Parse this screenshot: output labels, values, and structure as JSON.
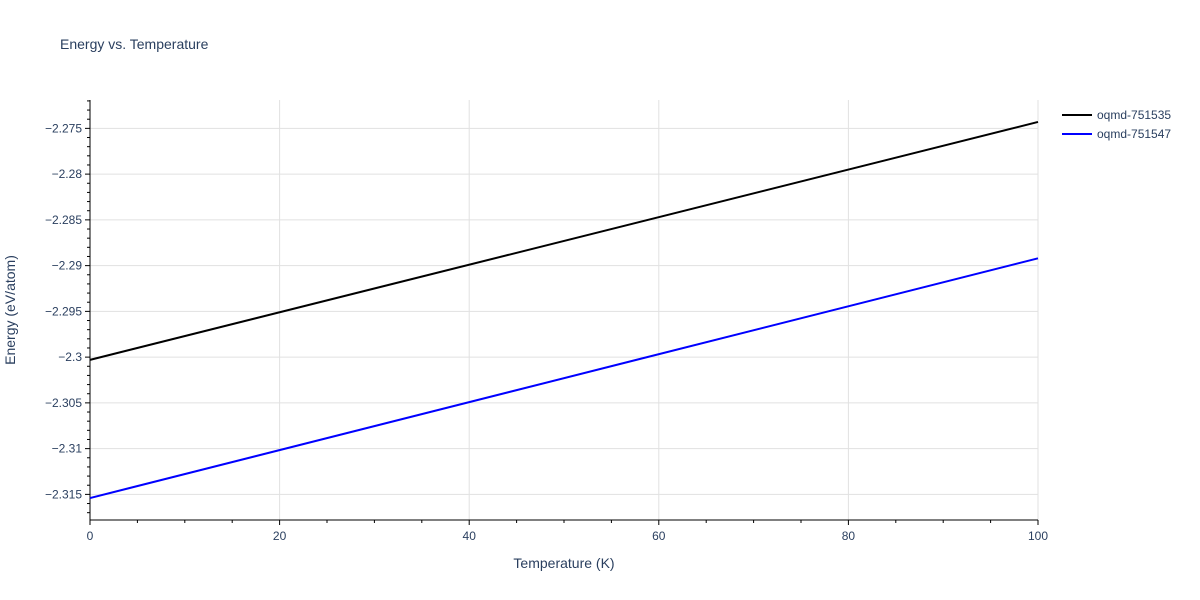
{
  "chart_data": {
    "type": "line",
    "title": "Energy vs. Temperature",
    "xlabel": "Temperature (K)",
    "ylabel": "Energy (eV/atom)",
    "xlim": [
      0,
      100
    ],
    "ylim": [
      -2.3178,
      -2.2719
    ],
    "x_ticks": [
      0,
      20,
      40,
      60,
      80,
      100
    ],
    "x_tick_labels": [
      "0",
      "20",
      "40",
      "60",
      "80",
      "100"
    ],
    "y_ticks": [
      -2.315,
      -2.31,
      -2.305,
      -2.3,
      -2.295,
      -2.29,
      -2.285,
      -2.28,
      -2.275
    ],
    "y_tick_labels": [
      "−2.315",
      "−2.31",
      "−2.305",
      "−2.3",
      "−2.295",
      "−2.29",
      "−2.285",
      "−2.28",
      "−2.275"
    ],
    "grid": true,
    "legend_position": "top-right",
    "series": [
      {
        "name": "oqmd-751535",
        "color": "#000000",
        "x": [
          0,
          100
        ],
        "y": [
          -2.3003,
          -2.2743
        ]
      },
      {
        "name": "oqmd-751547",
        "color": "#0000ff",
        "x": [
          0,
          100
        ],
        "y": [
          -2.3154,
          -2.2892
        ]
      }
    ]
  }
}
